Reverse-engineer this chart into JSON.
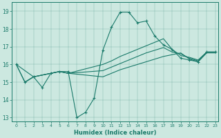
{
  "xlabel": "Humidex (Indice chaleur)",
  "bg_color": "#cce8e0",
  "line_color": "#1a7a6a",
  "xlim": [
    -0.5,
    23.3
  ],
  "ylim": [
    12.8,
    19.5
  ],
  "yticks": [
    13,
    14,
    15,
    16,
    17,
    18,
    19
  ],
  "xticks": [
    0,
    1,
    2,
    3,
    4,
    5,
    6,
    7,
    8,
    9,
    10,
    11,
    12,
    13,
    14,
    15,
    16,
    17,
    18,
    19,
    20,
    21,
    22,
    23
  ],
  "series": [
    {
      "x": [
        0,
        1,
        2,
        3,
        4,
        5,
        6,
        7,
        8,
        9,
        10,
        11,
        12,
        13,
        14,
        15,
        16,
        17,
        18,
        19,
        20,
        21,
        22,
        23
      ],
      "y": [
        16.0,
        15.0,
        15.3,
        14.7,
        15.5,
        15.6,
        15.6,
        13.0,
        13.3,
        14.1,
        16.8,
        18.1,
        18.95,
        18.95,
        18.35,
        18.45,
        17.6,
        17.1,
        16.85,
        16.35,
        16.25,
        16.15,
        16.7,
        16.7
      ],
      "has_markers": true
    },
    {
      "x": [
        0,
        1,
        2,
        4,
        5,
        6,
        10,
        11,
        12,
        13,
        14,
        15,
        16,
        17,
        18,
        19,
        20,
        21,
        22,
        23
      ],
      "y": [
        16.0,
        15.0,
        15.3,
        15.5,
        15.6,
        15.5,
        15.3,
        15.5,
        15.7,
        15.85,
        16.0,
        16.15,
        16.3,
        16.45,
        16.55,
        16.65,
        16.3,
        16.15,
        16.65,
        16.65
      ],
      "has_markers": false
    },
    {
      "x": [
        0,
        2,
        4,
        5,
        6,
        10,
        11,
        12,
        13,
        14,
        15,
        16,
        17,
        18,
        19,
        20,
        21,
        22,
        23
      ],
      "y": [
        16.0,
        15.3,
        15.5,
        15.6,
        15.5,
        16.0,
        16.2,
        16.45,
        16.65,
        16.85,
        17.05,
        17.25,
        17.45,
        16.85,
        16.5,
        16.4,
        16.25,
        16.7,
        16.7
      ],
      "has_markers": false
    },
    {
      "x": [
        1,
        2,
        4,
        5,
        6,
        10,
        11,
        12,
        13,
        14,
        15,
        16,
        17,
        18,
        19,
        20,
        21,
        22,
        23
      ],
      "y": [
        15.0,
        15.3,
        15.5,
        15.6,
        15.5,
        15.65,
        15.85,
        16.05,
        16.25,
        16.45,
        16.65,
        16.8,
        16.95,
        16.7,
        16.6,
        16.35,
        16.2,
        16.7,
        16.7
      ],
      "has_markers": false
    }
  ]
}
